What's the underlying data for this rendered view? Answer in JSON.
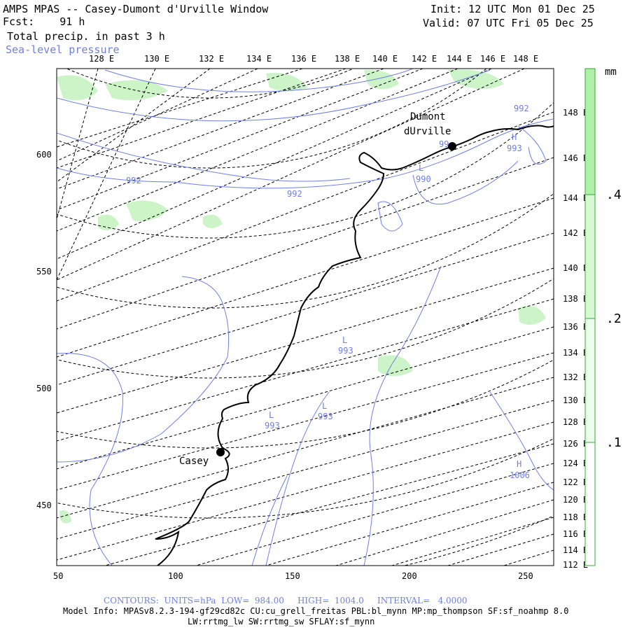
{
  "header": {
    "title": "AMPS MPAS -- Casey-Dumont d'Urville Window",
    "fcst_label": "Fcst:",
    "fcst_value": "91 h",
    "field": "Total precip. in past 3 h",
    "overlay": "Sea-level pressure",
    "init": "Init: 12 UTC Mon 01 Dec 25",
    "valid": "Valid: 07 UTC Fri 05 Dec 25"
  },
  "top_longitudes": [
    "128 E",
    "130 E",
    "132 E",
    "134 E",
    "136 E",
    "138 E",
    "140 E",
    "142 E",
    "144 E",
    "146 E",
    "148 E"
  ],
  "right_longitudes": [
    "148 E",
    "146 E",
    "144 E",
    "142 E",
    "140 E",
    "138 E",
    "136 E",
    "134 E",
    "132 E",
    "130 E",
    "128 E",
    "126 E",
    "124 E",
    "122 E",
    "120 E",
    "118 E",
    "116 E",
    "114 E",
    "112 E"
  ],
  "y_ticks": [
    "600",
    "550",
    "500",
    "450"
  ],
  "x_ticks": [
    "50",
    "100",
    "150",
    "200",
    "250"
  ],
  "stations": [
    {
      "name_line1": "Dumont",
      "name_line2": "dUrville"
    },
    {
      "name_line1": "Casey"
    }
  ],
  "pressure_labels": [
    {
      "text": "992"
    },
    {
      "text": "992"
    },
    {
      "text": "992"
    },
    {
      "text": "99"
    },
    {
      "text": "990",
      "symbol": "L"
    },
    {
      "text": "993",
      "symbol": "H"
    },
    {
      "text": "993",
      "symbol": "L"
    },
    {
      "text": "993",
      "symbol": "L"
    },
    {
      "text": "993",
      "symbol": "L"
    },
    {
      "text": "1006",
      "symbol": "H"
    }
  ],
  "colorbar": {
    "unit": "mm",
    "labels": [
      ".4",
      ".2",
      ".1"
    ],
    "fill_color": "#aef0a6",
    "border_color": "#39a939"
  },
  "footer": {
    "contours": "CONTOURS:  UNITS=hPa  LOW=  984.00     HIGH=  1004.0     INTERVAL=   4.0000",
    "model_info": "Model Info: MPASv8.2.3-194-gf29cd82c CU:cu_grell_freitas PBL:bl_mynn MP:mp_thompson SF:sf_noahmp 8.0",
    "model_info2": "LW:rrtmg_lw SW:rrtmg_sw SFLAY:sf_mynn"
  },
  "colors": {
    "contour": "#6f7fe8",
    "precip": "#aef0a6",
    "coast": "#000000"
  }
}
